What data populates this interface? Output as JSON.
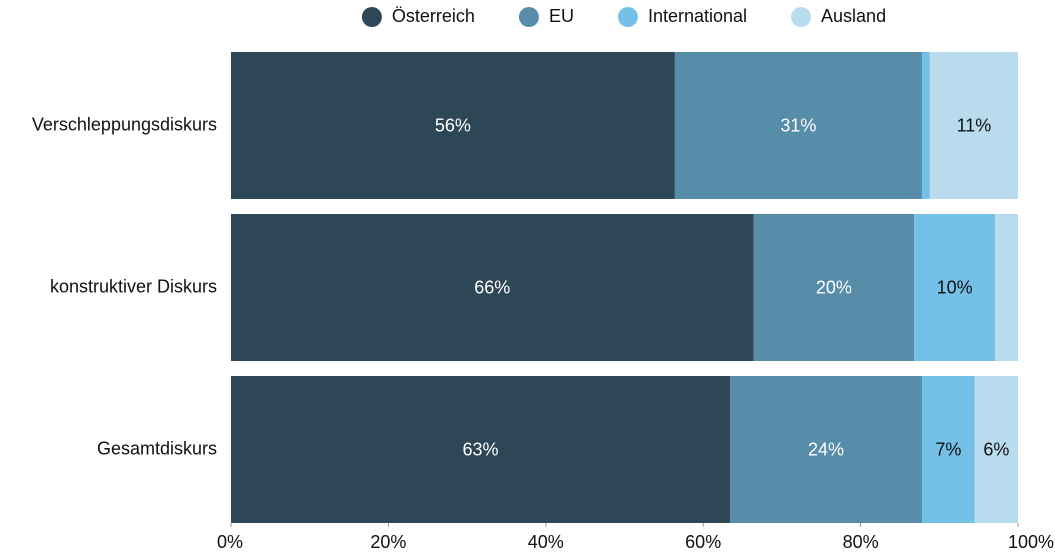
{
  "chart_data": {
    "type": "stacked_barh",
    "categories": [
      "Verschleppungsdiskurs",
      "konstruktiver Diskurs",
      "Gesamtdiskurs"
    ],
    "series": [
      {
        "name": "Österreich",
        "color": "#2d4756",
        "values": [
          56.4,
          66.4,
          63.4
        ],
        "value_labels": [
          "56%",
          "66%",
          "63%"
        ]
      },
      {
        "name": "EU",
        "color": "#578da8",
        "values": [
          31.4,
          20.4,
          24.4
        ],
        "value_labels": [
          "31%",
          "20%",
          "24%"
        ]
      },
      {
        "name": "International",
        "color": "#74c0e6",
        "values": [
          1.0,
          10.3,
          6.7
        ],
        "value_labels": [
          null,
          "10%",
          "7%"
        ]
      },
      {
        "name": "Ausland",
        "color": "#b8dcee",
        "values": [
          11.2,
          2.9,
          5.5
        ],
        "value_labels": [
          "11%",
          null,
          "6%"
        ]
      }
    ],
    "xlim": [
      0,
      100
    ],
    "xticks": [
      {
        "value": 0,
        "label": "0%"
      },
      {
        "value": 20,
        "label": "20%"
      },
      {
        "value": 40,
        "label": "40%"
      },
      {
        "value": 60,
        "label": "60%"
      },
      {
        "value": 80,
        "label": "80%"
      },
      {
        "value": 100,
        "label": "100%"
      }
    ],
    "legend": "top"
  }
}
